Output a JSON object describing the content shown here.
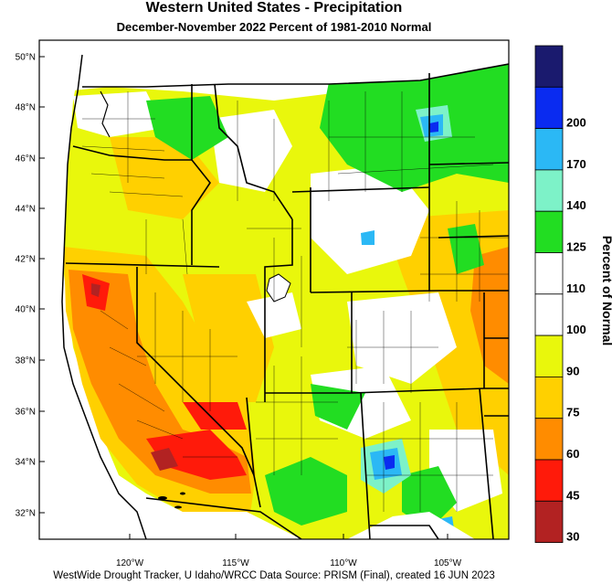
{
  "title": "Western United States - Precipitation",
  "subtitle": "December-November 2022  Percent of 1981-2010 Normal",
  "footer": "WestWide Drought Tracker, U Idaho/WRCC Data Source: PRISM (Final), created 16 JUN 2023",
  "legend": {
    "title": "Percent of Normal",
    "bins": [
      {
        "label": "",
        "color": "#1a1a6e"
      },
      {
        "label": "200",
        "color": "#0a2bf0"
      },
      {
        "label": "170",
        "color": "#2bb8f5"
      },
      {
        "label": "140",
        "color": "#7df2c8"
      },
      {
        "label": "125",
        "color": "#22dd22"
      },
      {
        "label": "110",
        "color": "#ffffff"
      },
      {
        "label": "100",
        "color": "#ffffff"
      },
      {
        "label": "90",
        "color": "#e9f70c"
      },
      {
        "label": "75",
        "color": "#ffd000"
      },
      {
        "label": "60",
        "color": "#ff8c00"
      },
      {
        "label": "45",
        "color": "#ff1a0a"
      },
      {
        "label": "30",
        "color": "#b22222"
      }
    ]
  },
  "axes": {
    "lat_labels": [
      "50°N",
      "48°N",
      "46°N",
      "44°N",
      "42°N",
      "40°N",
      "38°N",
      "36°N",
      "34°N",
      "32°N"
    ],
    "lon_labels": [
      "120°W",
      "115°W",
      "110°W",
      "105°W"
    ]
  }
}
